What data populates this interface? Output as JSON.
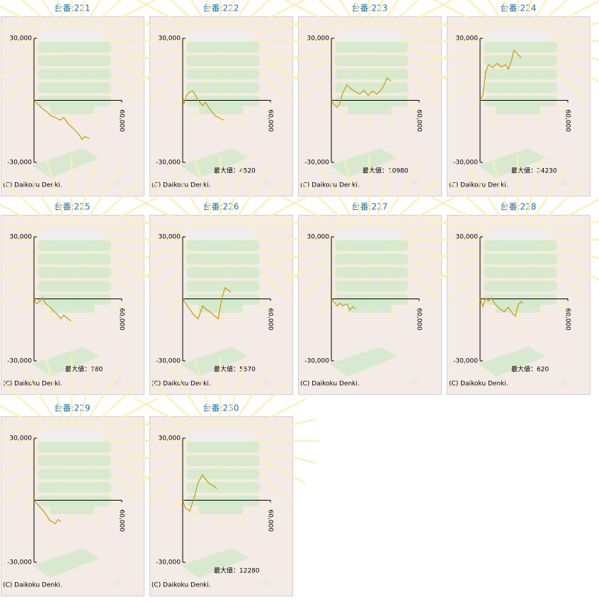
{
  "chart_data": [
    {
      "type": "line",
      "title": "台番:221",
      "color": "#c89b00",
      "xlim": [
        0,
        60000
      ],
      "ylim": [
        -30000,
        30000
      ],
      "xticks": [
        {
          "value": 60000,
          "label": "60,000"
        }
      ],
      "yticks": [
        {
          "value": 30000,
          "label": "30,000"
        },
        {
          "value": -30000,
          "label": "-30,000"
        }
      ],
      "footer": "(C) Daikoku Denki.",
      "x": [
        0,
        3400,
        5800,
        8700,
        11600,
        14500,
        17900,
        20300,
        23200,
        27100,
        31000,
        32900,
        34800,
        37800
      ],
      "values": [
        0,
        -2400,
        -4100,
        -5500,
        -7500,
        -8200,
        -9600,
        -8200,
        -11300,
        -13700,
        -16800,
        -18900,
        -17500,
        -18500
      ]
    },
    {
      "type": "line",
      "title": "台番:222",
      "color": "#c89b00",
      "xlim": [
        0,
        60000
      ],
      "ylim": [
        -30000,
        30000
      ],
      "xticks": [
        {
          "value": 60000,
          "label": "60,000"
        }
      ],
      "yticks": [
        {
          "value": 30000,
          "label": "30,000"
        },
        {
          "value": -30000,
          "label": "-30,000"
        }
      ],
      "footer": "(C) Daikoku Denki.",
      "annotation": "最大値：4520",
      "x": [
        0,
        1000,
        2400,
        4400,
        6800,
        8700,
        10600,
        13600,
        15500,
        18400,
        22300,
        28100
      ],
      "values": [
        0,
        -1500,
        2000,
        4000,
        4500,
        2500,
        0,
        -2500,
        -900,
        -4100,
        -7500,
        -9600
      ]
    },
    {
      "type": "line",
      "title": "台番:223",
      "color": "#c89b00",
      "xlim": [
        0,
        60000
      ],
      "ylim": [
        -30000,
        30000
      ],
      "xticks": [
        {
          "value": 60000,
          "label": "60,000"
        }
      ],
      "yticks": [
        {
          "value": 30000,
          "label": "30,000"
        },
        {
          "value": -30000,
          "label": "-30,000"
        }
      ],
      "footer": "(C) Daikoku Denki.",
      "annotation": "最大値：10980",
      "x": [
        0,
        1900,
        3900,
        5800,
        7700,
        10600,
        13600,
        16500,
        19400,
        22300,
        25200,
        28100,
        31000,
        33900,
        36800,
        37800,
        40700
      ],
      "values": [
        0,
        -2100,
        -3400,
        -1500,
        3400,
        7500,
        5500,
        4100,
        3100,
        4800,
        2400,
        4500,
        3000,
        4800,
        8600,
        10800,
        9300
      ]
    },
    {
      "type": "line",
      "title": "台番:224",
      "color": "#c89b00",
      "xlim": [
        0,
        60000
      ],
      "ylim": [
        -30000,
        30000
      ],
      "xticks": [
        {
          "value": 60000,
          "label": "60,000"
        }
      ],
      "yticks": [
        {
          "value": 30000,
          "label": "30,000"
        },
        {
          "value": -30000,
          "label": "-30,000"
        }
      ],
      "footer": "(C) Daikoku Denki.",
      "annotation": "最大値：24230",
      "x": [
        0,
        1900,
        3900,
        5800,
        8700,
        11600,
        14500,
        17400,
        19400,
        21300,
        23200,
        26100,
        28100
      ],
      "values": [
        0,
        2400,
        14000,
        17200,
        15800,
        17900,
        16100,
        17200,
        15100,
        18900,
        24200,
        22000,
        20600
      ]
    },
    {
      "type": "line",
      "title": "台番:225",
      "color": "#c89b00",
      "xlim": [
        0,
        60000
      ],
      "ylim": [
        -30000,
        30000
      ],
      "xticks": [
        {
          "value": 60000,
          "label": "60,000"
        }
      ],
      "yticks": [
        {
          "value": 30000,
          "label": "30,000"
        },
        {
          "value": -30000,
          "label": "-30,000"
        }
      ],
      "footer": "(C) Daikoku Denki.",
      "annotation": "最大値：780",
      "x": [
        0,
        1900,
        3900,
        5800,
        7700,
        11600,
        15500,
        18400,
        20300,
        25200
      ],
      "values": [
        0,
        -2400,
        -1000,
        700,
        -2000,
        -4500,
        -7200,
        -9600,
        -7900,
        -10700
      ]
    },
    {
      "type": "line",
      "title": "台番:226",
      "color": "#c89b00",
      "xlim": [
        0,
        60000
      ],
      "ylim": [
        -30000,
        30000
      ],
      "xticks": [
        {
          "value": 60000,
          "label": "60,000"
        }
      ],
      "yticks": [
        {
          "value": 30000,
          "label": "30,000"
        },
        {
          "value": -30000,
          "label": "-30,000"
        }
      ],
      "footer": "(C) Daikoku Denki.",
      "annotation": "最大値：5570",
      "x": [
        0,
        3900,
        7700,
        10600,
        13600,
        15500,
        18400,
        24200,
        27100,
        29000,
        32900
      ],
      "values": [
        0,
        -4100,
        -7900,
        -9600,
        -3400,
        -4800,
        -6200,
        -9600,
        1000,
        5500,
        3100
      ]
    },
    {
      "type": "line",
      "title": "台番:227",
      "color": "#c89b00",
      "xlim": [
        0,
        60000
      ],
      "ylim": [
        -30000,
        30000
      ],
      "xticks": [
        {
          "value": 60000,
          "label": "60,000"
        }
      ],
      "yticks": [
        {
          "value": 30000,
          "label": "30,000"
        },
        {
          "value": -30000,
          "label": "-30,000"
        }
      ],
      "footer": "(C) Daikoku Denki.",
      "x": [
        0,
        1900,
        3900,
        5800,
        7700,
        10600,
        12600,
        14500,
        16500
      ],
      "values": [
        0,
        -1500,
        -3400,
        -2100,
        -3400,
        -2400,
        -5500,
        -3800,
        -4800
      ]
    },
    {
      "type": "line",
      "title": "台番:228",
      "color": "#c89b00",
      "xlim": [
        0,
        60000
      ],
      "ylim": [
        -30000,
        30000
      ],
      "xticks": [
        {
          "value": 60000,
          "label": "60,000"
        }
      ],
      "yticks": [
        {
          "value": 30000,
          "label": "30,000"
        },
        {
          "value": -30000,
          "label": "-30,000"
        }
      ],
      "footer": "(C) Daikoku Denki.",
      "annotation": "最大値：620",
      "x": [
        0,
        1900,
        3900,
        5800,
        7700,
        10600,
        13600,
        16500,
        19400,
        22300,
        24200,
        26100,
        28100,
        29000
      ],
      "values": [
        0,
        -3800,
        400,
        -1000,
        600,
        -2800,
        -4800,
        -6200,
        -4100,
        -7200,
        -8300,
        -2800,
        -1300,
        -2400
      ]
    },
    {
      "type": "line",
      "title": "台番:229",
      "color": "#c89b00",
      "xlim": [
        0,
        60000
      ],
      "ylim": [
        -30000,
        30000
      ],
      "xticks": [
        {
          "value": 60000,
          "label": "60,000"
        }
      ],
      "yticks": [
        {
          "value": 30000,
          "label": "30,000"
        },
        {
          "value": -30000,
          "label": "-30,000"
        }
      ],
      "footer": "(C) Daikoku Denki.",
      "x": [
        0,
        2900,
        6800,
        10600,
        14500,
        16500,
        18400
      ],
      "values": [
        0,
        -2400,
        -5500,
        -9600,
        -11300,
        -9300,
        -10300
      ]
    },
    {
      "type": "line",
      "title": "台番:230",
      "color": "#c89b00",
      "xlim": [
        0,
        60000
      ],
      "ylim": [
        -30000,
        30000
      ],
      "xticks": [
        {
          "value": 60000,
          "label": "60,000"
        }
      ],
      "yticks": [
        {
          "value": 30000,
          "label": "30,000"
        },
        {
          "value": -30000,
          "label": "-30,000"
        }
      ],
      "footer": "(C) Daikoku Denki.",
      "annotation": "最大値：12280",
      "x": [
        0,
        1900,
        4800,
        7700,
        10600,
        13600,
        15500,
        18400,
        21300,
        23200
      ],
      "values": [
        0,
        -3800,
        -5200,
        1000,
        8600,
        12300,
        10300,
        7900,
        6900,
        5500
      ]
    }
  ]
}
